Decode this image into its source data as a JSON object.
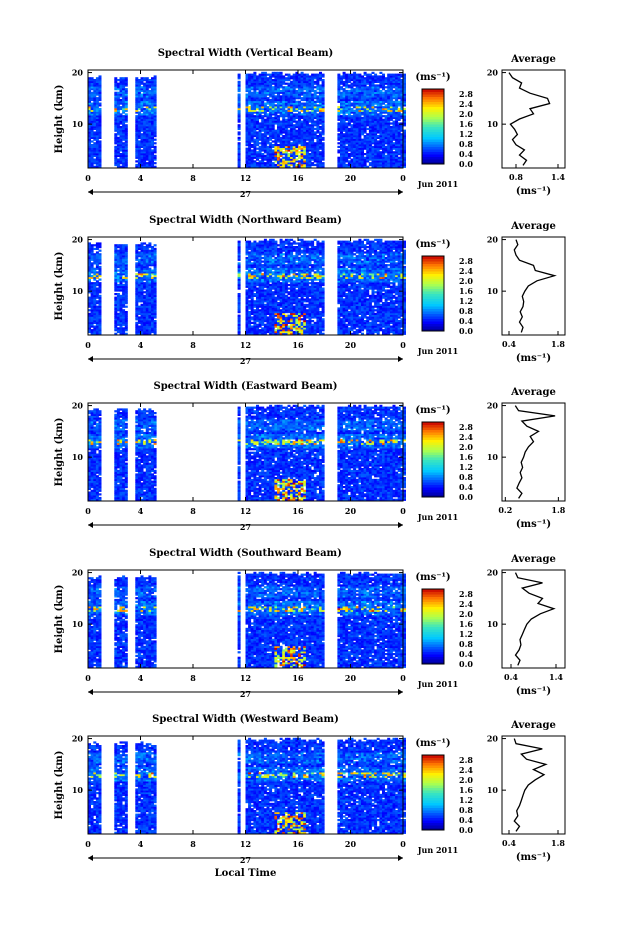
{
  "chart_data": [
    {
      "type": "heatmap",
      "title": "Spectral Width (Vertical Beam)",
      "ylabel": "Height (km)",
      "xticks": [
        "0",
        "4",
        "8",
        "12",
        "16",
        "20",
        "0"
      ],
      "yticks": [
        "20",
        "10"
      ],
      "day_label": "27",
      "date_label": "Jun 2011",
      "xlim": [
        0,
        24
      ],
      "ylim": [
        1.5,
        20.5
      ],
      "colorbar": {
        "unit": "(ms⁻¹)",
        "ticks": [
          "2.8",
          "2.4",
          "2.0",
          "1.6",
          "1.2",
          "0.8",
          "0.4",
          "0.0"
        ],
        "range": [
          0.0,
          3.0
        ]
      },
      "average_profile": {
        "title": "Average",
        "xlabel": "(ms⁻¹)",
        "xticks": [
          "0.8",
          "1.4"
        ],
        "xlim": [
          0.6,
          1.5
        ],
        "yticks": [
          "20",
          "10"
        ],
        "height": [
          2,
          3,
          4,
          5,
          6,
          7,
          8,
          9,
          10,
          11,
          12,
          13,
          14,
          15,
          16,
          17,
          18,
          19,
          20
        ],
        "width": [
          0.9,
          0.95,
          0.85,
          0.92,
          0.8,
          0.75,
          0.82,
          0.78,
          0.72,
          0.85,
          1.05,
          1.0,
          1.28,
          1.25,
          1.0,
          0.85,
          0.88,
          0.75,
          0.7
        ]
      }
    },
    {
      "type": "heatmap",
      "title": "Spectral Width (Northward Beam)",
      "ylabel": "Height (km)",
      "xticks": [
        "0",
        "4",
        "8",
        "12",
        "16",
        "20",
        "0"
      ],
      "yticks": [
        "20",
        "10"
      ],
      "day_label": "27",
      "date_label": "Jun 2011",
      "xlim": [
        0,
        24
      ],
      "ylim": [
        1.5,
        20.5
      ],
      "colorbar": {
        "unit": "(ms⁻¹)",
        "ticks": [
          "2.8",
          "2.4",
          "2.0",
          "1.6",
          "1.2",
          "0.8",
          "0.4",
          "0.0"
        ],
        "range": [
          0.0,
          3.0
        ]
      },
      "average_profile": {
        "title": "Average",
        "xlabel": "(ms⁻¹)",
        "xticks": [
          "0.4",
          "1.8"
        ],
        "xlim": [
          0.2,
          2.0
        ],
        "yticks": [
          "20",
          "10"
        ],
        "height": [
          2,
          3,
          4,
          5,
          6,
          7,
          8,
          9,
          10,
          11,
          12,
          13,
          14,
          15,
          16,
          17,
          18,
          19,
          20
        ],
        "width": [
          0.75,
          0.8,
          0.7,
          0.78,
          0.72,
          0.8,
          0.82,
          0.78,
          0.85,
          0.95,
          1.2,
          1.7,
          1.15,
          1.1,
          0.7,
          0.6,
          0.55,
          0.65,
          0.6
        ]
      }
    },
    {
      "type": "heatmap",
      "title": "Spectral Width (Eastward Beam)",
      "ylabel": "Height (km)",
      "xticks": [
        "0",
        "4",
        "8",
        "12",
        "16",
        "20",
        "0"
      ],
      "yticks": [
        "20",
        "10"
      ],
      "day_label": "27",
      "date_label": "Jun 2011",
      "xlim": [
        0,
        24
      ],
      "ylim": [
        1.5,
        20.5
      ],
      "colorbar": {
        "unit": "(ms⁻¹)",
        "ticks": [
          "2.8",
          "2.4",
          "2.0",
          "1.6",
          "1.2",
          "0.8",
          "0.4",
          "0.0"
        ],
        "range": [
          0.0,
          3.0
        ]
      },
      "average_profile": {
        "title": "Average",
        "xlabel": "(ms⁻¹)",
        "xticks": [
          "0.2",
          "1.8"
        ],
        "xlim": [
          0.1,
          2.0
        ],
        "yticks": [
          "20",
          "10"
        ],
        "height": [
          2,
          3,
          4,
          5,
          6,
          7,
          8,
          9,
          10,
          11,
          12,
          13,
          14,
          15,
          16,
          17,
          18,
          19,
          20
        ],
        "width": [
          0.6,
          0.7,
          0.55,
          0.62,
          0.7,
          0.65,
          0.72,
          0.68,
          0.75,
          0.8,
          0.9,
          1.05,
          0.95,
          1.2,
          0.85,
          0.7,
          1.7,
          0.6,
          0.5
        ]
      }
    },
    {
      "type": "heatmap",
      "title": "Spectral Width (Southward Beam)",
      "ylabel": "Height (km)",
      "xticks": [
        "0",
        "4",
        "8",
        "12",
        "16",
        "20",
        "0"
      ],
      "yticks": [
        "20",
        "10"
      ],
      "day_label": "27",
      "date_label": "Jun 2011",
      "xlim": [
        0,
        24
      ],
      "ylim": [
        1.5,
        20.5
      ],
      "colorbar": {
        "unit": "(ms⁻¹)",
        "ticks": [
          "2.8",
          "2.4",
          "2.0",
          "1.6",
          "1.2",
          "0.8",
          "0.4",
          "0.0"
        ],
        "range": [
          0.0,
          3.0
        ]
      },
      "average_profile": {
        "title": "Average",
        "xlabel": "(ms⁻¹)",
        "xticks": [
          "0.4",
          "1.4"
        ],
        "xlim": [
          0.2,
          1.6
        ],
        "yticks": [
          "20",
          "10"
        ],
        "height": [
          2,
          3,
          4,
          5,
          6,
          7,
          8,
          9,
          10,
          11,
          12,
          13,
          14,
          15,
          16,
          17,
          18,
          19,
          20
        ],
        "width": [
          0.55,
          0.6,
          0.5,
          0.58,
          0.62,
          0.6,
          0.65,
          0.7,
          0.75,
          0.85,
          1.05,
          1.35,
          1.0,
          1.1,
          0.8,
          0.65,
          1.1,
          0.55,
          0.5
        ]
      }
    },
    {
      "type": "heatmap",
      "title": "Spectral Width (Westward Beam)",
      "ylabel": "Height (km)",
      "xticks": [
        "0",
        "4",
        "8",
        "12",
        "16",
        "20",
        "0"
      ],
      "yticks": [
        "20",
        "10"
      ],
      "day_label": "27",
      "date_label": "Jun 2011",
      "xlabel": "Local Time",
      "xlim": [
        0,
        24
      ],
      "ylim": [
        1.5,
        20.5
      ],
      "colorbar": {
        "unit": "(ms⁻¹)",
        "ticks": [
          "2.8",
          "2.4",
          "2.0",
          "1.6",
          "1.2",
          "0.8",
          "0.4",
          "0.0"
        ],
        "range": [
          0.0,
          3.0
        ]
      },
      "average_profile": {
        "title": "Average",
        "xlabel": "(ms⁻¹)",
        "xticks": [
          "0.4",
          "1.8"
        ],
        "xlim": [
          0.2,
          2.0
        ],
        "yticks": [
          "20",
          "10"
        ],
        "height": [
          2,
          3,
          4,
          5,
          6,
          7,
          8,
          9,
          10,
          11,
          12,
          13,
          14,
          15,
          16,
          17,
          18,
          19,
          20
        ],
        "width": [
          0.6,
          0.7,
          0.55,
          0.65,
          0.62,
          0.7,
          0.75,
          0.8,
          0.85,
          0.95,
          1.15,
          1.4,
          1.1,
          1.45,
          0.9,
          0.75,
          1.35,
          0.6,
          0.55
        ]
      }
    }
  ]
}
